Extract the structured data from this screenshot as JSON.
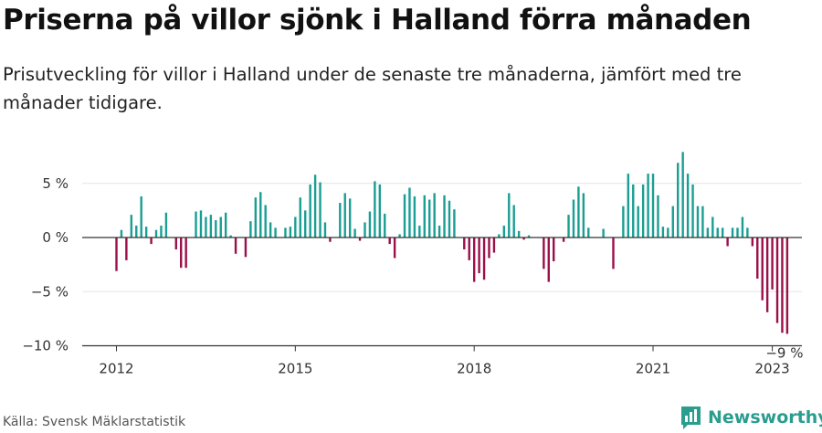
{
  "header": {
    "title": "Priserna på villor sjönk i Halland förra månaden",
    "subtitle": "Prisutveckling för villor i Halland under de senaste tre månaderna, jämfört med tre månader tidigare."
  },
  "footer": {
    "source": "Källa: Svensk Mäklarstatistik",
    "brand": "Newsworthy"
  },
  "colors": {
    "positive": "#1a9e93",
    "negative": "#9b0f4a",
    "grid": "#e3e3e3",
    "zero_line": "#333333",
    "brand": "#2a9d8f"
  },
  "chart_data": {
    "type": "bar",
    "title": "Priserna på villor sjönk i Halland förra månaden",
    "subtitle": "Prisutveckling för villor i Halland under de senaste tre månaderna, jämfört med tre månader tidigare.",
    "xlabel": "",
    "ylabel": "",
    "y_unit": "%",
    "ylim": [
      -10.5,
      7.5
    ],
    "yticks": [
      5,
      0,
      -5,
      -10
    ],
    "ytick_labels": [
      "5 %",
      "0 %",
      "−5 %",
      "−10 %"
    ],
    "x_start": "2012-01",
    "x_end": "2023-01",
    "frequency": "monthly",
    "xticks": [
      "2012",
      "2015",
      "2018",
      "2021",
      "2023"
    ],
    "last_value_label": "−9 %",
    "grid": true,
    "legend": "none",
    "values": [
      -3.1,
      0.7,
      -2.1,
      2.1,
      1.1,
      3.8,
      1.0,
      -0.6,
      0.7,
      1.1,
      2.3,
      0,
      -1.1,
      -2.8,
      -2.8,
      0,
      2.4,
      2.5,
      1.9,
      2.1,
      1.6,
      1.9,
      2.3,
      0.2,
      -1.5,
      0,
      -1.8,
      1.5,
      3.7,
      4.2,
      3.0,
      1.4,
      0.9,
      0,
      0.9,
      1.0,
      1.9,
      3.7,
      2.5,
      4.9,
      5.8,
      5.1,
      1.4,
      -0.4,
      0,
      3.2,
      4.1,
      3.6,
      0.8,
      -0.3,
      1.4,
      2.4,
      5.2,
      4.9,
      2.2,
      -0.6,
      -1.9,
      0.3,
      4.0,
      4.6,
      3.8,
      1.1,
      3.9,
      3.5,
      4.1,
      1.1,
      3.9,
      3.4,
      2.6,
      0,
      -1.1,
      -2.1,
      -4.1,
      -3.3,
      -3.9,
      -1.9,
      -1.4,
      0.3,
      1.1,
      4.1,
      3.0,
      0.6,
      -0.2,
      0.2,
      0,
      0,
      -2.9,
      -4.1,
      -2.2,
      0,
      -0.4,
      2.1,
      3.5,
      4.7,
      4.1,
      0.9,
      0,
      0,
      0.8,
      0,
      -2.9,
      0,
      2.9,
      5.9,
      4.9,
      2.9,
      4.9,
      5.9,
      5.9,
      3.9,
      1.0,
      0.9,
      2.9,
      6.9,
      7.9,
      5.9,
      4.9,
      2.9,
      2.9,
      0.9,
      1.9,
      0.9,
      0.9,
      -0.8,
      0.9,
      0.9,
      1.9,
      0.9,
      -0.8,
      -3.8,
      -5.8,
      -6.9,
      -4.8,
      -7.9,
      -8.8,
      -8.9
    ]
  }
}
